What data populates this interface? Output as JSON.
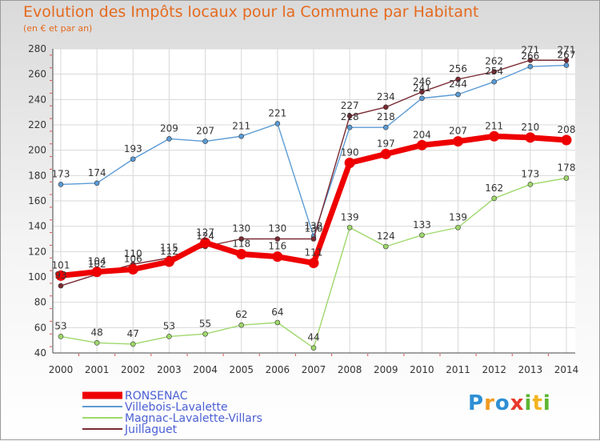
{
  "title": "Evolution des Impôts locaux pour la Commune par Habitant",
  "subtitle": "(en € et par an)",
  "logo": {
    "letters": [
      "P",
      "r",
      "o",
      "x",
      "i",
      "t",
      "i"
    ],
    "colors": [
      "#2e8fd4",
      "#f29a1f",
      "#2e8fd4",
      "#e8392b",
      "#5cb531",
      "#f2b51f",
      "#5cb531"
    ]
  },
  "chart_data": {
    "type": "line",
    "x": [
      2000,
      2001,
      2002,
      2003,
      2004,
      2005,
      2006,
      2007,
      2008,
      2009,
      2010,
      2011,
      2012,
      2013,
      2014
    ],
    "ylim": [
      40,
      280
    ],
    "yticks": [
      40,
      60,
      80,
      100,
      120,
      140,
      160,
      180,
      200,
      220,
      240,
      260,
      280
    ],
    "grid": true,
    "legend_position": "bottom-left",
    "series": [
      {
        "name": "Villebois-Lavalette",
        "color": "#5b9bd5",
        "width": 1.4,
        "values": [
          173,
          174,
          193,
          209,
          207,
          211,
          221,
          132,
          218,
          218,
          241,
          244,
          254,
          266,
          267
        ]
      },
      {
        "name": "Magnac-Lavalette-Villars",
        "color": "#9fd86b",
        "width": 1.4,
        "values": [
          53,
          48,
          47,
          53,
          55,
          62,
          64,
          44,
          139,
          124,
          133,
          139,
          162,
          173,
          178
        ]
      },
      {
        "name": "Juillaguet",
        "color": "#7a2a32",
        "width": 1.4,
        "values": [
          93,
          102,
          110,
          115,
          124,
          130,
          130,
          130,
          227,
          234,
          246,
          256,
          262,
          271,
          271
        ]
      },
      {
        "name": "RONSENAC",
        "color": "#ee0000",
        "width": 7,
        "values": [
          101,
          104,
          106,
          112,
          127,
          118,
          116,
          111,
          190,
          197,
          204,
          207,
          211,
          210,
          208
        ]
      }
    ]
  }
}
